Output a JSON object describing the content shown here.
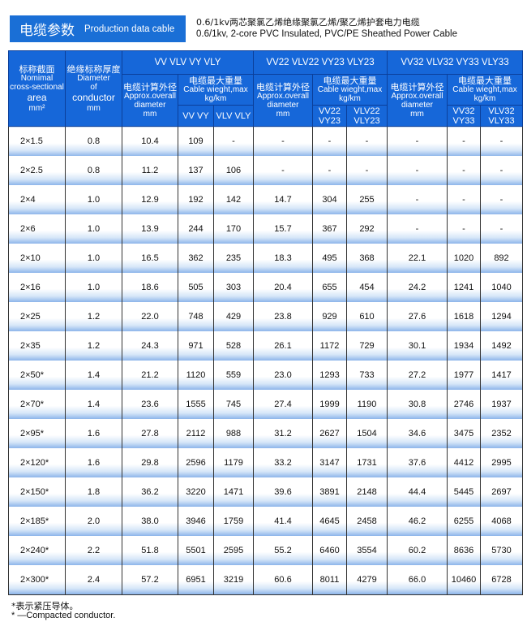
{
  "title": {
    "zh": "电缆参数",
    "en": "Production data cable"
  },
  "subtitle": {
    "zh": "0.6/1kv两芯聚氯乙烯绝缘聚氯乙烯/聚乙烯护套电力电缆",
    "en": "0.6/1kv, 2-core PVC  Insulated,  PVC/PE Sheathed Power Cable"
  },
  "header": {
    "area": {
      "zh": "标称截面",
      "l1": "Nomimal",
      "l2": "cross-sectional",
      "l3": "area",
      "l4": "mm²"
    },
    "thick": {
      "zh": "绝缘标称厚度",
      "l1": "Diameter",
      "l2": "of",
      "l3": "conductor",
      "l4": "mm"
    },
    "groups": [
      {
        "title": "VV  VLV  VY  VLY",
        "dia_zh": "电缆计算外径",
        "dia_en": "Approx.overall diameter",
        "dia_unit": "mm",
        "w_zh": "电缆最大重量",
        "w_en": "Cable wieght,max",
        "w_unit": "kg/km",
        "c1": "VV VY",
        "c2": "VLV VLY"
      },
      {
        "title": "VV22  VLV22  VY23  VLY23",
        "dia_zh": "电缆计算外径",
        "dia_en": "Approx.overall diameter",
        "dia_unit": "mm",
        "w_zh": "电缆最大重量",
        "w_en": "Cable wieght,max",
        "w_unit": "kg/km",
        "c1": "VV22 VY23",
        "c2": "VLV22 VLY23"
      },
      {
        "title": "VV32  VLV32  VY33  VLY33",
        "dia_zh": "电缆计算外径",
        "dia_en": "Approx.overall diameter",
        "dia_unit": "mm",
        "w_zh": "电缆最大重量",
        "w_en": "Cable wieght,max",
        "w_unit": "kg/km",
        "c1": "VV32 VY33",
        "c2": "VLV32 VLY33"
      }
    ]
  },
  "rows": [
    [
      "2×1.5",
      "0.8",
      "10.4",
      "109",
      "-",
      "-",
      "-",
      "-",
      "-",
      "-",
      "-"
    ],
    [
      "2×2.5",
      "0.8",
      "11.2",
      "137",
      "106",
      "-",
      "-",
      "-",
      "-",
      "-",
      "-"
    ],
    [
      "2×4",
      "1.0",
      "12.9",
      "192",
      "142",
      "14.7",
      "304",
      "255",
      "-",
      "-",
      "-"
    ],
    [
      "2×6",
      "1.0",
      "13.9",
      "244",
      "170",
      "15.7",
      "367",
      "292",
      "-",
      "-",
      "-"
    ],
    [
      "2×10",
      "1.0",
      "16.5",
      "362",
      "235",
      "18.3",
      "495",
      "368",
      "22.1",
      "1020",
      "892"
    ],
    [
      "2×16",
      "1.0",
      "18.6",
      "505",
      "303",
      "20.4",
      "655",
      "454",
      "24.2",
      "1241",
      "1040"
    ],
    [
      "2×25",
      "1.2",
      "22.0",
      "748",
      "429",
      "23.8",
      "929",
      "610",
      "27.6",
      "1618",
      "1294"
    ],
    [
      "2×35",
      "1.2",
      "24.3",
      "971",
      "528",
      "26.1",
      "1172",
      "729",
      "30.1",
      "1934",
      "1492"
    ],
    [
      "2×50*",
      "1.4",
      "21.2",
      "1120",
      "559",
      "23.0",
      "1293",
      "733",
      "27.2",
      "1977",
      "1417"
    ],
    [
      "2×70*",
      "1.4",
      "23.6",
      "1555",
      "745",
      "27.4",
      "1999",
      "1190",
      "30.8",
      "2746",
      "1937"
    ],
    [
      "2×95*",
      "1.6",
      "27.8",
      "2112",
      "988",
      "31.2",
      "2627",
      "1504",
      "34.6",
      "3475",
      "2352"
    ],
    [
      "2×120*",
      "1.6",
      "29.8",
      "2596",
      "1179",
      "33.2",
      "3147",
      "1731",
      "37.6",
      "4412",
      "2995"
    ],
    [
      "2×150*",
      "1.8",
      "36.2",
      "3220",
      "1471",
      "39.6",
      "3891",
      "2148",
      "44.4",
      "5445",
      "2697"
    ],
    [
      "2×185*",
      "2.0",
      "38.0",
      "3946",
      "1759",
      "41.4",
      "4645",
      "2458",
      "46.2",
      "6255",
      "4068"
    ],
    [
      "2×240*",
      "2.2",
      "51.8",
      "5501",
      "2595",
      "55.2",
      "6460",
      "3554",
      "60.2",
      "8636",
      "5730"
    ],
    [
      "2×300*",
      "2.4",
      "57.2",
      "6951",
      "3219",
      "60.6",
      "8011",
      "4279",
      "66.0",
      "10460",
      "6728"
    ]
  ],
  "notes": {
    "zh": "*表示紧压导体。",
    "en": "* —Compacted conductor."
  },
  "colors": {
    "header_blue": "#1667d9",
    "title_blue": "#1a6fd6",
    "row_gradient_blue": "#8db5ea"
  }
}
